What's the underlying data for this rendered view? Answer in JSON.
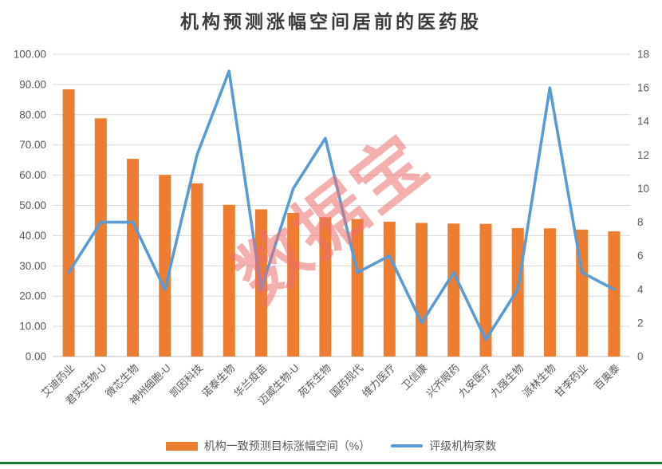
{
  "page": {
    "title": "机构预测涨幅空间居前的医药股",
    "watermark": "数据宝",
    "colors": {
      "bar": "#ED7D31",
      "line": "#5B9BD5",
      "gridline": "#D9D9D9",
      "axis_line": "#BFBFBF",
      "axis_text": "#595959",
      "title_text": "#3B3B3B",
      "watermark": "#EB6E6E",
      "bottom_border": "#1B7A34"
    }
  },
  "legend": [
    {
      "type": "bar",
      "label": "机构一致预测目标涨幅空间（%）"
    },
    {
      "type": "line",
      "label": "评级机构家数"
    }
  ],
  "chart_data": {
    "type": "bar",
    "subtype": "bar+line-combo",
    "title": "机构预测涨幅空间居前的医药股",
    "xlabel": "",
    "ylabel_left": "机构一致预测目标涨幅空间（%）",
    "ylabel_right": "评级机构家数",
    "grid": true,
    "legend_position": "bottom",
    "categories": [
      "艾迪药业",
      "君实生物-U",
      "微芯生物",
      "神州细胞-U",
      "凯因科技",
      "诺泰生物",
      "华兰疫苗",
      "迈威生物-U",
      "苑东生物",
      "国药现代",
      "维力医疗",
      "卫信康",
      "兴齐眼药",
      "九安医疗",
      "九强生物",
      "派林生物",
      "甘李药业",
      "百奥泰"
    ],
    "series": [
      {
        "name": "机构一致预测目标涨幅空间（%）",
        "type": "bar",
        "axis": "left",
        "color": "#ED7D31",
        "values": [
          88.4,
          78.8,
          65.4,
          60.1,
          57.3,
          50.2,
          48.7,
          47.5,
          46.1,
          45.5,
          44.6,
          44.2,
          44.0,
          43.9,
          42.5,
          42.4,
          42.0,
          41.4
        ]
      },
      {
        "name": "评级机构家数",
        "type": "line",
        "axis": "right",
        "color": "#5B9BD5",
        "values": [
          5,
          8,
          8,
          4,
          12,
          17,
          4,
          10,
          13,
          5,
          6,
          2,
          5,
          1,
          4,
          16,
          5,
          4
        ]
      }
    ],
    "left_axis": {
      "min": 0,
      "max": 100,
      "step": 10,
      "ticks": [
        "0.00",
        "10.00",
        "20.00",
        "30.00",
        "40.00",
        "50.00",
        "60.00",
        "70.00",
        "80.00",
        "90.00",
        "100.00"
      ]
    },
    "right_axis": {
      "min": 0,
      "max": 18,
      "step": 2,
      "ticks": [
        "0",
        "2",
        "4",
        "6",
        "8",
        "10",
        "12",
        "14",
        "16",
        "18"
      ]
    }
  }
}
